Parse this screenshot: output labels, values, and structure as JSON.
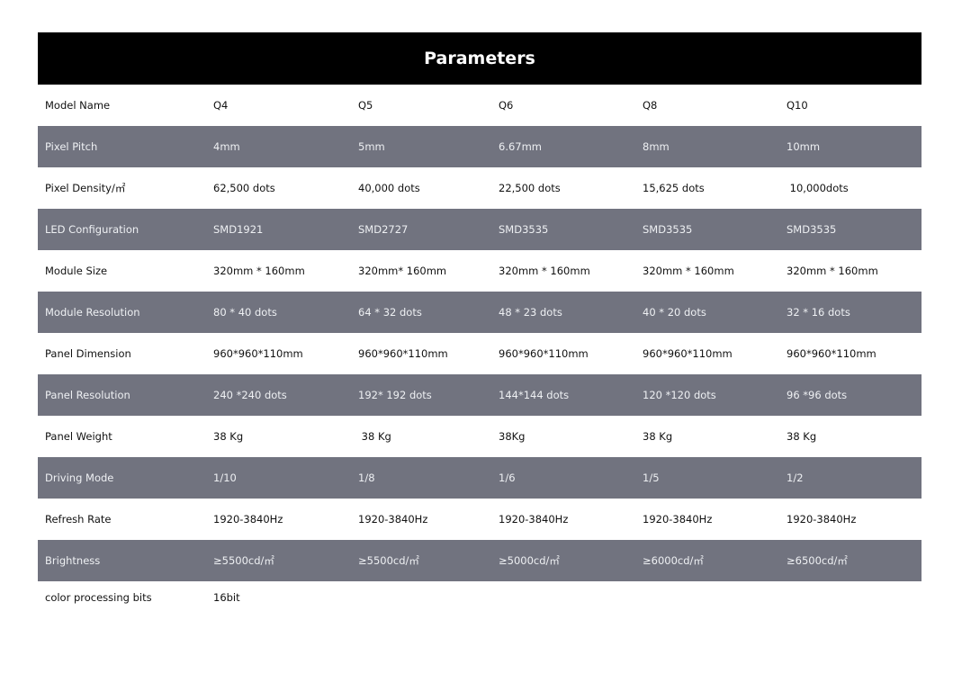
{
  "title": "Parameters",
  "colors": {
    "header_bg": "#000000",
    "alt_row_bg": "#71737f"
  },
  "rows": [
    {
      "label": "Model Name",
      "values": [
        "Q4",
        "Q5",
        "Q6",
        "Q8",
        "Q10"
      ]
    },
    {
      "label": "Pixel Pitch",
      "values": [
        "4mm",
        "5mm",
        "6.67mm",
        "8mm",
        "10mm"
      ]
    },
    {
      "label": "Pixel Density/㎡",
      "values": [
        "62,500 dots",
        "40,000 dots",
        "22,500 dots",
        "15,625 dots",
        " 10,000dots"
      ]
    },
    {
      "label": "LED Configuration",
      "values": [
        "SMD1921",
        "SMD2727",
        "SMD3535",
        "SMD3535",
        "SMD3535"
      ]
    },
    {
      "label": "Module Size",
      "values": [
        "320mm * 160mm",
        "320mm* 160mm",
        "320mm * 160mm",
        "320mm * 160mm",
        "320mm * 160mm"
      ]
    },
    {
      "label": "Module Resolution",
      "values": [
        "80 * 40 dots",
        "64 * 32 dots",
        "48 * 23 dots",
        "40 * 20 dots",
        "32 * 16 dots"
      ]
    },
    {
      "label": "Panel Dimension",
      "values": [
        "960*960*110mm",
        "960*960*110mm",
        "960*960*110mm",
        "960*960*110mm",
        "960*960*110mm"
      ]
    },
    {
      "label": "Panel Resolution",
      "values": [
        "240 *240 dots",
        "192* 192 dots",
        "144*144 dots",
        "120 *120 dots",
        "96 *96 dots"
      ]
    },
    {
      "label": "Panel Weight",
      "values": [
        "38 Kg",
        " 38 Kg",
        "38Kg",
        "38 Kg",
        "38 Kg"
      ]
    },
    {
      "label": "Driving Mode",
      "values": [
        "1/10",
        "1/8",
        "1/6",
        "1/5",
        "1/2"
      ]
    },
    {
      "label": "Refresh Rate",
      "values": [
        "1920-3840Hz",
        "1920-3840Hz",
        "1920-3840Hz",
        "1920-3840Hz",
        "1920-3840Hz"
      ]
    },
    {
      "label": "Brightness",
      "values": [
        "≥5500cd/㎡",
        "≥5500cd/㎡",
        "≥5000cd/㎡",
        "≥6000cd/㎡",
        "≥6500cd/㎡"
      ]
    },
    {
      "label": "color processing bits",
      "values": [
        "16bit"
      ]
    }
  ]
}
